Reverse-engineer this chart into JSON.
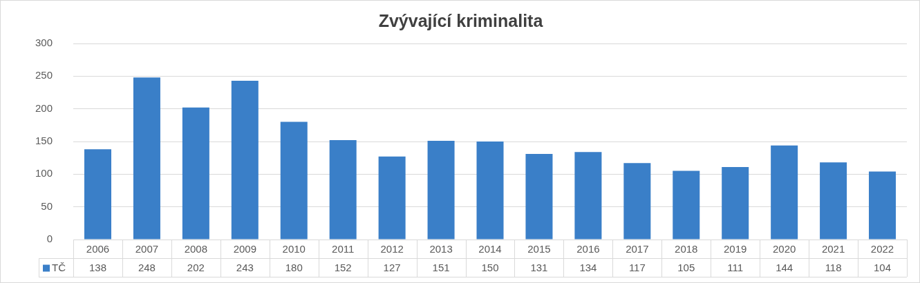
{
  "chart_data": {
    "type": "bar",
    "title": "Zvývající kriminalita",
    "categories": [
      "2006",
      "2007",
      "2008",
      "2009",
      "2010",
      "2011",
      "2012",
      "2013",
      "2014",
      "2015",
      "2016",
      "2017",
      "2018",
      "2019",
      "2020",
      "2021",
      "2022"
    ],
    "series": [
      {
        "name": "TČ",
        "color": "#3a7fc8",
        "values": [
          138,
          248,
          202,
          243,
          180,
          152,
          127,
          151,
          150,
          131,
          134,
          117,
          105,
          111,
          144,
          118,
          104
        ]
      }
    ],
    "ylim": [
      0,
      300
    ],
    "yticks": [
      0,
      50,
      100,
      150,
      200,
      250,
      300
    ],
    "grid": "y",
    "data_labels": true
  }
}
